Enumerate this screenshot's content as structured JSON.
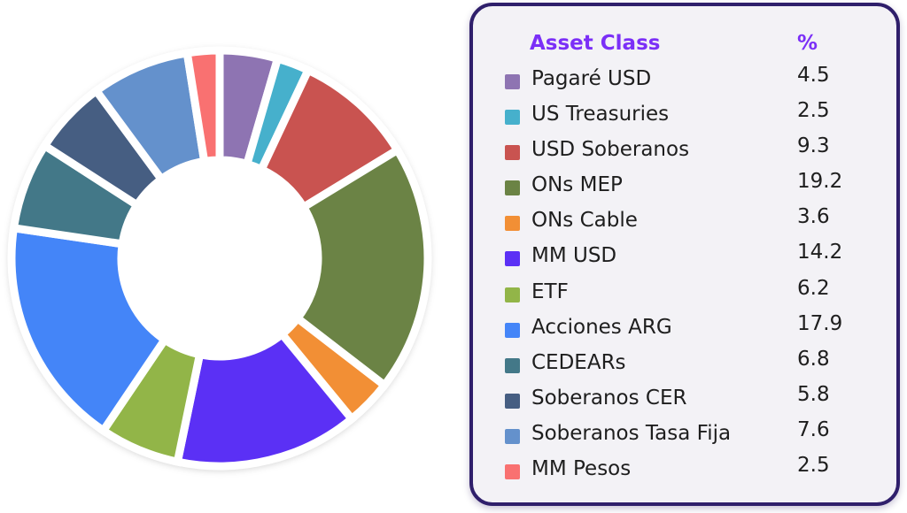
{
  "legend": {
    "header_class": "Asset Class",
    "header_pct": "%"
  },
  "chart_data": {
    "type": "pie",
    "variant": "donut",
    "title": "",
    "categories": [
      "Pagaré USD",
      "US Treasuries",
      "USD Soberanos",
      "ONs MEP",
      "ONs Cable",
      "MM USD",
      "ETF",
      "Acciones ARG",
      "CEDEARs",
      "Soberanos CER",
      "Soberanos Tasa Fija",
      "MM Pesos"
    ],
    "values": [
      4.5,
      2.5,
      9.3,
      19.2,
      3.6,
      14.2,
      6.2,
      17.9,
      6.8,
      5.8,
      7.6,
      2.5
    ],
    "value_labels": [
      "4.5",
      "2.5",
      "9.3",
      "19.2",
      "3.6",
      "14.2",
      "6.2",
      "17.9",
      "6.8",
      "5.8",
      "7.6",
      "2.5"
    ],
    "colors": [
      "#8e74b2",
      "#46b0cc",
      "#c95350",
      "#6b8345",
      "#f28f35",
      "#5b30f5",
      "#92b548",
      "#4485f8",
      "#437888",
      "#465e82",
      "#6491cc",
      "#f97171"
    ],
    "start_angle_deg": 0,
    "direction": "clockwise",
    "legend_position": "right"
  }
}
